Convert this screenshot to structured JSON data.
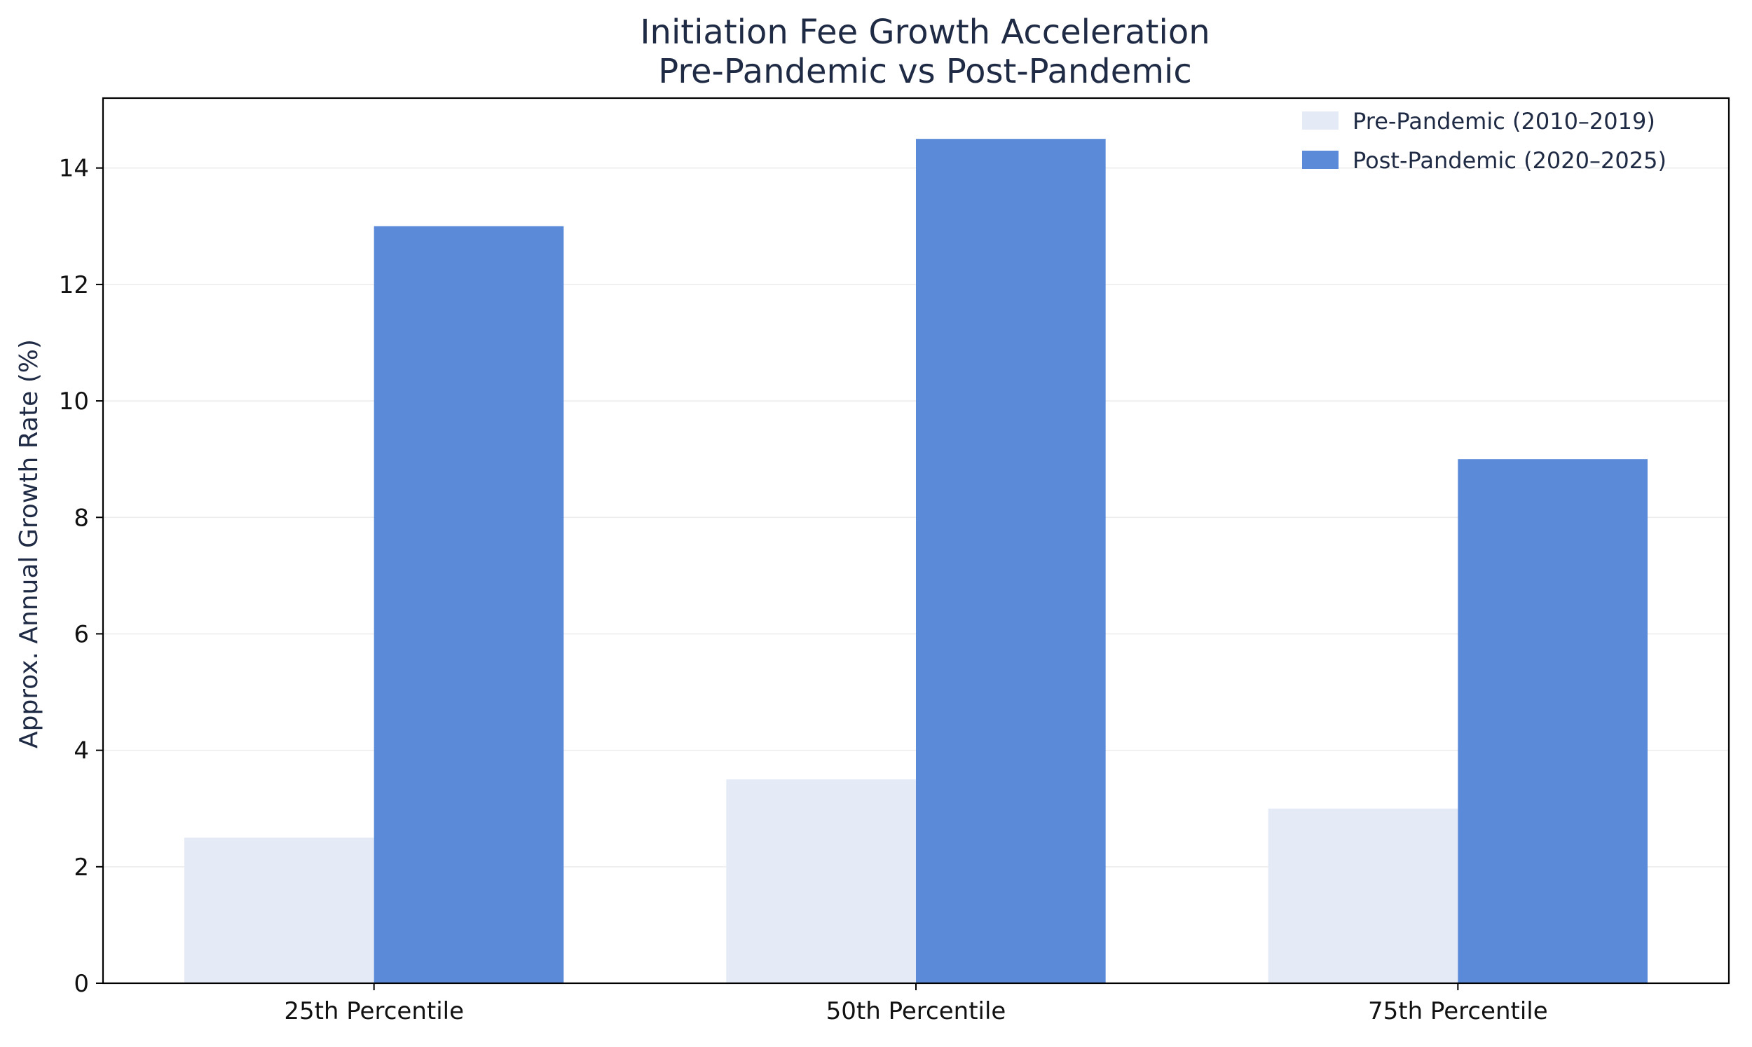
{
  "chart_data": {
    "type": "bar",
    "title_lines": [
      "Initiation Fee Growth Acceleration",
      "Pre-Pandemic vs Post-Pandemic"
    ],
    "xlabel": "",
    "ylabel": "Approx. Annual Growth Rate (%)",
    "categories": [
      "25th Percentile",
      "50th Percentile",
      "75th Percentile"
    ],
    "series": [
      {
        "name": "Pre-Pandemic (2010–2019)",
        "values": [
          2.5,
          3.5,
          3.0
        ],
        "color": "#e4ebf7"
      },
      {
        "name": "Post-Pandemic (2020–2025)",
        "values": [
          13.0,
          14.5,
          9.0
        ],
        "color": "#5b8bd8"
      }
    ],
    "ylim": [
      0,
      15.2
    ],
    "yticks": [
      0,
      2,
      4,
      6,
      8,
      10,
      12,
      14
    ],
    "grid": "y",
    "legend_position": "top-right"
  }
}
